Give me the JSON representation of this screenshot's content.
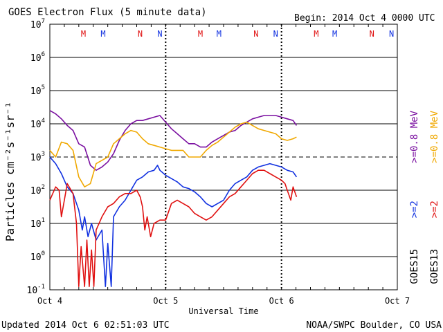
{
  "title": "GOES Electron Flux (5 minute data)",
  "begin_label": "Begin: 2014 Oct 4 0000 UTC",
  "updated_label": "Updated 2014 Oct  6 02:51:03 UTC",
  "credit_label": "NOAA/SWPC Boulder, CO USA",
  "colors": {
    "purple": "#7a0fa0",
    "orange": "#f0a800",
    "blue": "#1030e0",
    "red": "#e01010",
    "black": "#000000"
  },
  "chart_data": {
    "type": "line",
    "title": "GOES Electron Flux (5 minute data)",
    "xlabel": "Universal Time",
    "ylabel": "Particles cm⁻²s⁻¹sr⁻¹",
    "x_unit": "days since 2014 Oct 4 0000 UTC",
    "xlim": [
      0,
      3
    ],
    "ylim_log10": [
      -1,
      7
    ],
    "y_scale": "log",
    "x_ticks": [
      {
        "value": 0,
        "label": "Oct 4"
      },
      {
        "value": 1,
        "label": "Oct 5"
      },
      {
        "value": 2,
        "label": "Oct 6"
      },
      {
        "value": 3,
        "label": "Oct 7"
      }
    ],
    "y_ticks": [
      {
        "exp": 7,
        "label": "10",
        "sup": "7"
      },
      {
        "exp": 6,
        "label": "10",
        "sup": "6"
      },
      {
        "exp": 5,
        "label": "10",
        "sup": "5"
      },
      {
        "exp": 4,
        "label": "10",
        "sup": "4"
      },
      {
        "exp": 3,
        "label": "10",
        "sup": "3"
      },
      {
        "exp": 2,
        "label": "10",
        "sup": "2"
      },
      {
        "exp": 1,
        "label": "10",
        "sup": "1"
      },
      {
        "exp": 0,
        "label": "10",
        "sup": "0"
      },
      {
        "exp": -1,
        "label": "10",
        "sup": "-1"
      }
    ],
    "threshold_log10": 3,
    "markers": [
      {
        "text": "M",
        "x": 0.29,
        "color": "red"
      },
      {
        "text": "M",
        "x": 0.46,
        "color": "blue"
      },
      {
        "text": "N",
        "x": 0.78,
        "color": "red"
      },
      {
        "text": "N",
        "x": 0.95,
        "color": "blue"
      },
      {
        "text": "M",
        "x": 1.3,
        "color": "red"
      },
      {
        "text": "M",
        "x": 1.46,
        "color": "blue"
      },
      {
        "text": "N",
        "x": 1.78,
        "color": "red"
      },
      {
        "text": "N",
        "x": 1.95,
        "color": "blue"
      },
      {
        "text": "M",
        "x": 2.3,
        "color": "red"
      },
      {
        "text": "M",
        "x": 2.46,
        "color": "blue"
      },
      {
        "text": "N",
        "x": 2.78,
        "color": "red"
      },
      {
        "text": "N",
        "x": 2.95,
        "color": "blue"
      }
    ],
    "series": [
      {
        "name": "GOES15 >=0.8 MeV",
        "color": "purple",
        "x": [
          0.0,
          0.05,
          0.1,
          0.15,
          0.2,
          0.25,
          0.3,
          0.35,
          0.4,
          0.45,
          0.5,
          0.55,
          0.6,
          0.65,
          0.7,
          0.75,
          0.8,
          0.85,
          0.9,
          0.95,
          1.0,
          1.05,
          1.1,
          1.15,
          1.2,
          1.25,
          1.3,
          1.35,
          1.4,
          1.45,
          1.5,
          1.55,
          1.6,
          1.65,
          1.7,
          1.75,
          1.8,
          1.85,
          1.9,
          1.95,
          2.0,
          2.05,
          2.1,
          2.13
        ],
        "y": [
          4.4,
          4.3,
          4.15,
          3.95,
          3.8,
          3.4,
          3.3,
          2.75,
          2.6,
          2.7,
          2.85,
          3.1,
          3.5,
          3.8,
          4.0,
          4.1,
          4.1,
          4.15,
          4.2,
          4.25,
          4.05,
          3.85,
          3.7,
          3.55,
          3.4,
          3.4,
          3.3,
          3.3,
          3.45,
          3.55,
          3.65,
          3.75,
          3.8,
          3.95,
          4.05,
          4.15,
          4.2,
          4.25,
          4.25,
          4.25,
          4.2,
          4.15,
          4.1,
          3.95
        ]
      },
      {
        "name": "GOES13 >=0.8 MeV",
        "color": "orange",
        "x": [
          0.0,
          0.05,
          0.1,
          0.15,
          0.2,
          0.25,
          0.3,
          0.35,
          0.4,
          0.45,
          0.5,
          0.55,
          0.6,
          0.65,
          0.7,
          0.75,
          0.8,
          0.85,
          0.9,
          0.95,
          1.0,
          1.05,
          1.1,
          1.15,
          1.2,
          1.25,
          1.3,
          1.35,
          1.4,
          1.45,
          1.5,
          1.55,
          1.6,
          1.65,
          1.7,
          1.75,
          1.8,
          1.85,
          1.9,
          1.95,
          2.0,
          2.05,
          2.1,
          2.13
        ],
        "y": [
          3.2,
          3.0,
          3.45,
          3.4,
          3.2,
          2.4,
          2.1,
          2.2,
          2.8,
          2.9,
          3.0,
          3.4,
          3.55,
          3.7,
          3.8,
          3.75,
          3.55,
          3.4,
          3.35,
          3.3,
          3.25,
          3.2,
          3.2,
          3.2,
          3.0,
          3.0,
          3.0,
          3.2,
          3.35,
          3.45,
          3.6,
          3.75,
          3.9,
          4.0,
          4.05,
          3.95,
          3.85,
          3.8,
          3.75,
          3.7,
          3.55,
          3.5,
          3.55,
          3.6
        ]
      },
      {
        "name": "GOES15 >=2 MeV",
        "color": "blue",
        "x": [
          0.0,
          0.05,
          0.1,
          0.15,
          0.2,
          0.25,
          0.28,
          0.3,
          0.33,
          0.36,
          0.4,
          0.45,
          0.48,
          0.5,
          0.53,
          0.55,
          0.6,
          0.65,
          0.7,
          0.75,
          0.8,
          0.85,
          0.9,
          0.93,
          0.95,
          1.0,
          1.05,
          1.1,
          1.15,
          1.2,
          1.25,
          1.3,
          1.35,
          1.4,
          1.45,
          1.5,
          1.55,
          1.6,
          1.65,
          1.7,
          1.75,
          1.8,
          1.85,
          1.9,
          1.95,
          2.0,
          2.05,
          2.1,
          2.13
        ],
        "y": [
          3.0,
          2.8,
          2.5,
          2.1,
          1.9,
          1.4,
          0.8,
          1.2,
          0.6,
          1.0,
          0.5,
          0.8,
          -0.9,
          0.4,
          -0.9,
          1.2,
          1.5,
          1.7,
          2.0,
          2.3,
          2.4,
          2.55,
          2.6,
          2.75,
          2.6,
          2.45,
          2.35,
          2.25,
          2.1,
          2.05,
          1.95,
          1.8,
          1.6,
          1.5,
          1.6,
          1.7,
          2.0,
          2.2,
          2.3,
          2.4,
          2.6,
          2.7,
          2.75,
          2.8,
          2.75,
          2.7,
          2.6,
          2.55,
          2.4
        ]
      },
      {
        "name": "GOES13 >=2 MeV",
        "color": "red",
        "x": [
          0.0,
          0.05,
          0.08,
          0.1,
          0.13,
          0.15,
          0.2,
          0.23,
          0.25,
          0.27,
          0.3,
          0.32,
          0.34,
          0.36,
          0.38,
          0.4,
          0.45,
          0.5,
          0.55,
          0.6,
          0.65,
          0.7,
          0.75,
          0.78,
          0.8,
          0.82,
          0.84,
          0.87,
          0.9,
          0.95,
          1.0,
          1.05,
          1.1,
          1.15,
          1.2,
          1.25,
          1.3,
          1.35,
          1.4,
          1.45,
          1.5,
          1.55,
          1.6,
          1.65,
          1.7,
          1.75,
          1.8,
          1.85,
          1.9,
          1.95,
          2.0,
          2.03,
          2.05,
          2.08,
          2.1,
          2.13
        ],
        "y": [
          1.7,
          2.1,
          2.0,
          1.2,
          1.8,
          2.2,
          1.9,
          1.0,
          -0.9,
          0.3,
          -0.9,
          0.5,
          -0.9,
          0.2,
          -0.9,
          0.8,
          1.2,
          1.5,
          1.6,
          1.8,
          1.9,
          1.9,
          2.0,
          1.8,
          1.5,
          0.8,
          1.2,
          0.6,
          1.0,
          1.1,
          1.1,
          1.6,
          1.7,
          1.6,
          1.5,
          1.3,
          1.2,
          1.1,
          1.2,
          1.4,
          1.6,
          1.8,
          1.9,
          2.1,
          2.3,
          2.5,
          2.6,
          2.6,
          2.5,
          2.4,
          2.3,
          2.2,
          2.0,
          1.7,
          2.1,
          1.8
        ]
      }
    ],
    "right_labels": [
      {
        "text": ">=0.8  MeV",
        "color": "orange"
      },
      {
        "text": ">=0.8  MeV",
        "color": "purple"
      },
      {
        "text": ">=2",
        "color": "red"
      },
      {
        "text": ">=2",
        "color": "blue"
      },
      {
        "text": "GOES13",
        "color": "black"
      },
      {
        "text": "GOES15",
        "color": "black"
      }
    ]
  }
}
